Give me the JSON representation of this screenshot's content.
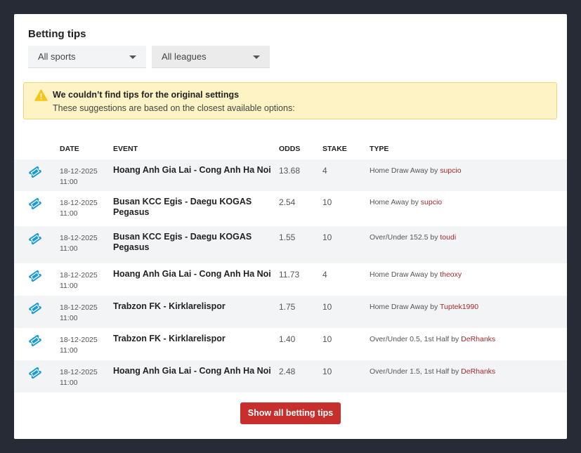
{
  "title": "Betting tips",
  "filters": {
    "sport": "All sports",
    "league": "All leagues"
  },
  "alert": {
    "title": "We couldn’t find tips for the original settings",
    "text": "These suggestions are based on the closest available options:"
  },
  "columns": {
    "date": "DATE",
    "event": "EVENT",
    "odds": "ODDS",
    "stake": "STAKE",
    "type": "TYPE"
  },
  "rows": [
    {
      "date": "18-12-2025",
      "time": "11:00",
      "event": "Hoang Anh Gia Lai - Cong Anh Ha Noi",
      "odds": "13.68",
      "stake": "4",
      "type": "Home Draw Away by ",
      "user": "supcio"
    },
    {
      "date": "18-12-2025",
      "time": "11:00",
      "event": "Busan KCC Egis - Daegu KOGAS Pegasus",
      "odds": "2.54",
      "stake": "10",
      "type": "Home Away by ",
      "user": "supcio"
    },
    {
      "date": "18-12-2025",
      "time": "11:00",
      "event": "Busan KCC Egis - Daegu KOGAS Pegasus",
      "odds": "1.55",
      "stake": "10",
      "type": "Over/Under 152.5 by ",
      "user": "toudi"
    },
    {
      "date": "18-12-2025",
      "time": "11:00",
      "event": "Hoang Anh Gia Lai - Cong Anh Ha Noi",
      "odds": "11.73",
      "stake": "4",
      "type": "Home Draw Away by ",
      "user": "theoxy"
    },
    {
      "date": "18-12-2025",
      "time": "11:00",
      "event": "Trabzon FK - Kirklarelispor",
      "odds": "1.75",
      "stake": "10",
      "type": "Home Draw Away by ",
      "user": "Tuptek1990"
    },
    {
      "date": "18-12-2025",
      "time": "11:00",
      "event": "Trabzon FK - Kirklarelispor",
      "odds": "1.40",
      "stake": "10",
      "type": "Over/Under 0.5, 1st Half by ",
      "user": "DeRhanks"
    },
    {
      "date": "18-12-2025",
      "time": "11:00",
      "event": "Hoang Anh Gia Lai - Cong Anh Ha Noi",
      "odds": "2.48",
      "stake": "10",
      "type": "Over/Under 1.5, 1st Half by ",
      "user": "DeRhanks"
    }
  ],
  "button": "Show all betting tips",
  "colors": {
    "accent": "#c62f2c",
    "ticket": "#1a9ad6",
    "warning": "#f5c518"
  }
}
